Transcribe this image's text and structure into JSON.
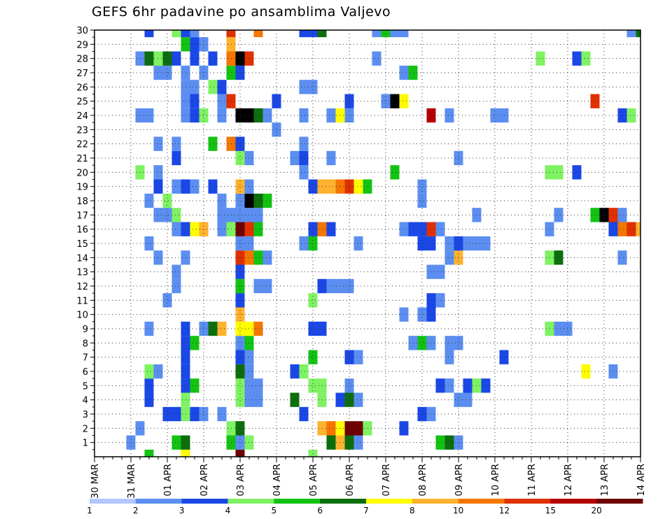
{
  "chart_data": {
    "type": "heatmap",
    "title": "GEFS 6hr padavine po ansamblima Valjevo",
    "xlabel": "",
    "ylabel": "",
    "x_tick_labels": [
      "30 MAR",
      "31 MAR",
      "01 APR",
      "02 APR",
      "03 APR",
      "04 APR",
      "05 APR",
      "06 APR",
      "07 APR",
      "08 APR",
      "09 APR",
      "10 APR",
      "11 APR",
      "12 APR",
      "13 APR",
      "14 APR"
    ],
    "y_tick_labels": [
      "1",
      "2",
      "3",
      "4",
      "5",
      "6",
      "7",
      "8",
      "9",
      "10",
      "11",
      "12",
      "13",
      "14",
      "15",
      "16",
      "17",
      "18",
      "19",
      "20",
      "21",
      "22",
      "23",
      "24",
      "25",
      "26",
      "27",
      "28",
      "29",
      "30"
    ],
    "x_steps_per_day": 4,
    "x_range": [
      0,
      60
    ],
    "y_range": [
      0,
      30
    ],
    "grid": true,
    "colorbar": {
      "labels": [
        "1",
        "2",
        "3",
        "4",
        "5",
        "6",
        "7",
        "8",
        "10",
        "12",
        "15",
        "20"
      ],
      "colors": [
        "#b3c6ff",
        "#5b8ef0",
        "#1a47e6",
        "#7ff263",
        "#13c313",
        "#0c6e0c",
        "#fffc00",
        "#ffb22e",
        "#f47600",
        "#e03000",
        "#b40000",
        "#6e0000"
      ]
    },
    "cells": [
      [
        6,
        0,
        4
      ],
      [
        10,
        0,
        6
      ],
      [
        16,
        0,
        4
      ],
      [
        16,
        0,
        11
      ],
      [
        24,
        0,
        3
      ],
      [
        4,
        1,
        1
      ],
      [
        9,
        1,
        4
      ],
      [
        10,
        1,
        5
      ],
      [
        15,
        1,
        4
      ],
      [
        16,
        1,
        1
      ],
      [
        17,
        1,
        3
      ],
      [
        26,
        1,
        5
      ],
      [
        27,
        1,
        7
      ],
      [
        28,
        1,
        5
      ],
      [
        29,
        1,
        1
      ],
      [
        38,
        1,
        4
      ],
      [
        39,
        1,
        5
      ],
      [
        40,
        1,
        1
      ],
      [
        5,
        2,
        1
      ],
      [
        15,
        2,
        3
      ],
      [
        16,
        2,
        5
      ],
      [
        25,
        2,
        7
      ],
      [
        26,
        2,
        8
      ],
      [
        27,
        2,
        6
      ],
      [
        28,
        2,
        11
      ],
      [
        29,
        2,
        11
      ],
      [
        30,
        2,
        3
      ],
      [
        34,
        2,
        2
      ],
      [
        8,
        3,
        2
      ],
      [
        9,
        3,
        2
      ],
      [
        10,
        3,
        3
      ],
      [
        11,
        3,
        2
      ],
      [
        12,
        3,
        1
      ],
      [
        14,
        3,
        1
      ],
      [
        23,
        3,
        2
      ],
      [
        36,
        3,
        2
      ],
      [
        37,
        3,
        1
      ],
      [
        6,
        4,
        2
      ],
      [
        10,
        4,
        3
      ],
      [
        16,
        4,
        3
      ],
      [
        17,
        4,
        1
      ],
      [
        18,
        4,
        1
      ],
      [
        22,
        4,
        5
      ],
      [
        25,
        4,
        3
      ],
      [
        27,
        4,
        2
      ],
      [
        28,
        4,
        5
      ],
      [
        29,
        4,
        1
      ],
      [
        40,
        4,
        1
      ],
      [
        41,
        4,
        1
      ],
      [
        6,
        5,
        2
      ],
      [
        10,
        5,
        2
      ],
      [
        11,
        5,
        4
      ],
      [
        16,
        5,
        3
      ],
      [
        17,
        5,
        1
      ],
      [
        18,
        5,
        1
      ],
      [
        24,
        5,
        3
      ],
      [
        25,
        5,
        3
      ],
      [
        28,
        5,
        1
      ],
      [
        38,
        5,
        2
      ],
      [
        39,
        5,
        1
      ],
      [
        41,
        5,
        2
      ],
      [
        42,
        5,
        3
      ],
      [
        43,
        5,
        2
      ],
      [
        6,
        6,
        3
      ],
      [
        7,
        6,
        1
      ],
      [
        10,
        6,
        2
      ],
      [
        16,
        6,
        5
      ],
      [
        17,
        6,
        1
      ],
      [
        22,
        6,
        2
      ],
      [
        23,
        6,
        3
      ],
      [
        54,
        6,
        6
      ],
      [
        57,
        6,
        1
      ],
      [
        10,
        7,
        2
      ],
      [
        16,
        7,
        2
      ],
      [
        17,
        7,
        1
      ],
      [
        24,
        7,
        4
      ],
      [
        28,
        7,
        2
      ],
      [
        29,
        7,
        1
      ],
      [
        39,
        7,
        1
      ],
      [
        45,
        7,
        2
      ],
      [
        10,
        8,
        2
      ],
      [
        11,
        8,
        4
      ],
      [
        16,
        8,
        1
      ],
      [
        17,
        8,
        4
      ],
      [
        35,
        8,
        1
      ],
      [
        36,
        8,
        4
      ],
      [
        37,
        8,
        1
      ],
      [
        39,
        8,
        1
      ],
      [
        40,
        8,
        1
      ],
      [
        6,
        9,
        1
      ],
      [
        10,
        9,
        2
      ],
      [
        12,
        9,
        1
      ],
      [
        13,
        9,
        5
      ],
      [
        14,
        9,
        7
      ],
      [
        16,
        9,
        6
      ],
      [
        17,
        9,
        6
      ],
      [
        18,
        9,
        8
      ],
      [
        24,
        9,
        2
      ],
      [
        25,
        9,
        2
      ],
      [
        50,
        9,
        3
      ],
      [
        51,
        9,
        1
      ],
      [
        52,
        9,
        1
      ],
      [
        16,
        10,
        7
      ],
      [
        34,
        10,
        1
      ],
      [
        36,
        10,
        1
      ],
      [
        37,
        10,
        2
      ],
      [
        8,
        11,
        1
      ],
      [
        16,
        11,
        2
      ],
      [
        24,
        11,
        3
      ],
      [
        37,
        11,
        2
      ],
      [
        38,
        11,
        1
      ],
      [
        9,
        12,
        1
      ],
      [
        16,
        12,
        4
      ],
      [
        18,
        12,
        1
      ],
      [
        19,
        12,
        1
      ],
      [
        25,
        12,
        2
      ],
      [
        26,
        12,
        1
      ],
      [
        27,
        12,
        1
      ],
      [
        28,
        12,
        1
      ],
      [
        9,
        13,
        1
      ],
      [
        16,
        13,
        2
      ],
      [
        37,
        13,
        1
      ],
      [
        38,
        13,
        1
      ],
      [
        7,
        14,
        1
      ],
      [
        10,
        14,
        1
      ],
      [
        16,
        14,
        9
      ],
      [
        17,
        14,
        8
      ],
      [
        18,
        14,
        4
      ],
      [
        19,
        14,
        1
      ],
      [
        39,
        14,
        1
      ],
      [
        40,
        14,
        7
      ],
      [
        50,
        14,
        3
      ],
      [
        51,
        14,
        5
      ],
      [
        58,
        14,
        1
      ],
      [
        6,
        15,
        1
      ],
      [
        16,
        15,
        1
      ],
      [
        17,
        15,
        1
      ],
      [
        23,
        15,
        1
      ],
      [
        24,
        15,
        4
      ],
      [
        29,
        15,
        1
      ],
      [
        36,
        15,
        2
      ],
      [
        37,
        15,
        2
      ],
      [
        39,
        15,
        1
      ],
      [
        40,
        15,
        2
      ],
      [
        41,
        15,
        1
      ],
      [
        42,
        15,
        1
      ],
      [
        43,
        15,
        1
      ],
      [
        9,
        16,
        1
      ],
      [
        10,
        16,
        2
      ],
      [
        11,
        16,
        6
      ],
      [
        12,
        16,
        7
      ],
      [
        14,
        16,
        1
      ],
      [
        15,
        16,
        3
      ],
      [
        16,
        16,
        11
      ],
      [
        17,
        16,
        9
      ],
      [
        18,
        16,
        4
      ],
      [
        24,
        16,
        2
      ],
      [
        25,
        16,
        8
      ],
      [
        26,
        16,
        2
      ],
      [
        34,
        16,
        1
      ],
      [
        35,
        16,
        2
      ],
      [
        36,
        16,
        2
      ],
      [
        37,
        16,
        9
      ],
      [
        38,
        16,
        1
      ],
      [
        50,
        16,
        1
      ],
      [
        57,
        16,
        2
      ],
      [
        58,
        16,
        8
      ],
      [
        59,
        16,
        9
      ],
      [
        60,
        16,
        7
      ],
      [
        7,
        17,
        1
      ],
      [
        8,
        17,
        1
      ],
      [
        9,
        17,
        3
      ],
      [
        14,
        17,
        1
      ],
      [
        15,
        17,
        1
      ],
      [
        16,
        17,
        1
      ],
      [
        17,
        17,
        1
      ],
      [
        18,
        17,
        1
      ],
      [
        42,
        17,
        1
      ],
      [
        51,
        17,
        1
      ],
      [
        55,
        17,
        4
      ],
      [
        56,
        17,
        12
      ],
      [
        57,
        17,
        9
      ],
      [
        58,
        17,
        1
      ],
      [
        6,
        18,
        1
      ],
      [
        8,
        18,
        3
      ],
      [
        14,
        18,
        1
      ],
      [
        16,
        18,
        1
      ],
      [
        17,
        18,
        12
      ],
      [
        18,
        18,
        5
      ],
      [
        19,
        18,
        4
      ],
      [
        36,
        18,
        1
      ],
      [
        7,
        19,
        2
      ],
      [
        9,
        19,
        1
      ],
      [
        10,
        19,
        2
      ],
      [
        11,
        19,
        1
      ],
      [
        13,
        19,
        2
      ],
      [
        16,
        19,
        7
      ],
      [
        17,
        19,
        1
      ],
      [
        24,
        19,
        2
      ],
      [
        25,
        19,
        7
      ],
      [
        26,
        19,
        7
      ],
      [
        27,
        19,
        8
      ],
      [
        28,
        19,
        9
      ],
      [
        29,
        19,
        6
      ],
      [
        30,
        19,
        4
      ],
      [
        36,
        19,
        1
      ],
      [
        5,
        20,
        3
      ],
      [
        7,
        20,
        1
      ],
      [
        23,
        20,
        1
      ],
      [
        33,
        20,
        4
      ],
      [
        50,
        20,
        3
      ],
      [
        51,
        20,
        3
      ],
      [
        53,
        20,
        2
      ],
      [
        9,
        21,
        2
      ],
      [
        16,
        21,
        3
      ],
      [
        17,
        21,
        1
      ],
      [
        22,
        21,
        1
      ],
      [
        23,
        21,
        2
      ],
      [
        26,
        21,
        1
      ],
      [
        40,
        21,
        1
      ],
      [
        7,
        22,
        1
      ],
      [
        9,
        22,
        1
      ],
      [
        13,
        22,
        4
      ],
      [
        15,
        22,
        8
      ],
      [
        16,
        22,
        2
      ],
      [
        23,
        22,
        1
      ],
      [
        20,
        23,
        1
      ],
      [
        5,
        24,
        1
      ],
      [
        6,
        24,
        1
      ],
      [
        10,
        24,
        1
      ],
      [
        11,
        24,
        2
      ],
      [
        12,
        24,
        3
      ],
      [
        14,
        24,
        1
      ],
      [
        16,
        24,
        12
      ],
      [
        17,
        24,
        12
      ],
      [
        18,
        24,
        5
      ],
      [
        19,
        24,
        1
      ],
      [
        23,
        24,
        1
      ],
      [
        26,
        24,
        1
      ],
      [
        27,
        24,
        6
      ],
      [
        28,
        24,
        1
      ],
      [
        37,
        24,
        10
      ],
      [
        39,
        24,
        1
      ],
      [
        44,
        24,
        1
      ],
      [
        45,
        24,
        1
      ],
      [
        58,
        24,
        2
      ],
      [
        59,
        24,
        3
      ],
      [
        10,
        25,
        1
      ],
      [
        11,
        25,
        2
      ],
      [
        14,
        25,
        1
      ],
      [
        15,
        25,
        9
      ],
      [
        20,
        25,
        2
      ],
      [
        28,
        25,
        2
      ],
      [
        32,
        25,
        1
      ],
      [
        33,
        25,
        12
      ],
      [
        34,
        25,
        6
      ],
      [
        55,
        25,
        9
      ],
      [
        10,
        26,
        1
      ],
      [
        11,
        26,
        1
      ],
      [
        13,
        26,
        3
      ],
      [
        14,
        26,
        2
      ],
      [
        23,
        26,
        1
      ],
      [
        24,
        26,
        1
      ],
      [
        7,
        27,
        1
      ],
      [
        8,
        27,
        1
      ],
      [
        10,
        27,
        1
      ],
      [
        12,
        27,
        1
      ],
      [
        15,
        27,
        4
      ],
      [
        16,
        27,
        2
      ],
      [
        34,
        27,
        1
      ],
      [
        35,
        27,
        4
      ],
      [
        5,
        28,
        1
      ],
      [
        6,
        28,
        5
      ],
      [
        7,
        28,
        3
      ],
      [
        8,
        28,
        5
      ],
      [
        9,
        28,
        2
      ],
      [
        11,
        28,
        2
      ],
      [
        13,
        28,
        2
      ],
      [
        15,
        28,
        8
      ],
      [
        16,
        28,
        12
      ],
      [
        17,
        28,
        9
      ],
      [
        31,
        28,
        1
      ],
      [
        49,
        28,
        3
      ],
      [
        53,
        28,
        2
      ],
      [
        54,
        28,
        3
      ],
      [
        10,
        29,
        4
      ],
      [
        11,
        29,
        2
      ],
      [
        12,
        29,
        1
      ],
      [
        15,
        29,
        7
      ],
      [
        6,
        30,
        2
      ],
      [
        9,
        30,
        3
      ],
      [
        10,
        30,
        2
      ],
      [
        11,
        30,
        1
      ],
      [
        15,
        30,
        9
      ],
      [
        18,
        30,
        8
      ],
      [
        23,
        30,
        2
      ],
      [
        24,
        30,
        2
      ],
      [
        25,
        30,
        5
      ],
      [
        31,
        30,
        1
      ],
      [
        32,
        30,
        4
      ],
      [
        33,
        30,
        1
      ],
      [
        34,
        30,
        1
      ],
      [
        59,
        30,
        1
      ],
      [
        60,
        30,
        5
      ]
    ]
  }
}
